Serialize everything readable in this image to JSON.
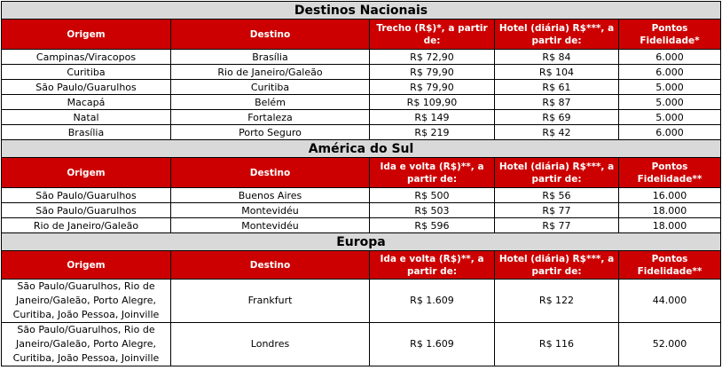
{
  "sections": [
    {
      "title": "Destinos Nacionais",
      "headers": [
        "Origem",
        "Destino",
        "Trecho (R$)*, a partir de:",
        "Hotel (diária) R$***, a partir de:",
        "Pontos Fidelidade*"
      ],
      "rows": [
        [
          "Campinas/Viracopos",
          "Brasília",
          "R$ 72,90",
          "R$ 84",
          "6.000"
        ],
        [
          "Curitiba",
          "Rio de Janeiro/Galeão",
          "R$ 79,90",
          "R$ 104",
          "6.000"
        ],
        [
          "São Paulo/Guarulhos",
          "Curitiba",
          "R$ 79,90",
          "R$ 61",
          "5.000"
        ],
        [
          "Macapá",
          "Belém",
          "R$ 109,90",
          "R$ 87",
          "5.000"
        ],
        [
          "Natal",
          "Fortaleza",
          "R$ 149",
          "R$ 69",
          "5.000"
        ],
        [
          "Brasília",
          "Porto Seguro",
          "R$ 219",
          "R$ 42",
          "6.000"
        ]
      ]
    },
    {
      "title": "América do Sul",
      "headers": [
        "Origem",
        "Destino",
        "Ida e volta (R$)**, a partir de:",
        "Hotel (diária) R$***, a partir de:",
        "Pontos Fidelidade**"
      ],
      "rows": [
        [
          "São Paulo/Guarulhos",
          "Buenos Aires",
          "R$ 500",
          "R$ 56",
          "16.000"
        ],
        [
          "São Paulo/Guarulhos",
          "Montevidéu",
          "R$ 503",
          "R$ 77",
          "18.000"
        ],
        [
          "Rio de Janeiro/Galeão",
          "Montevidéu",
          "R$ 596",
          "R$ 77",
          "18.000"
        ]
      ]
    },
    {
      "title": "Europa",
      "headers": [
        "Origem",
        "Destino",
        "Ida e volta (R$)**, a partir de:",
        "Hotel (diária) R$***, a partir de:",
        "Pontos Fidelidade**"
      ],
      "rows": [
        [
          "São Paulo/Guarulhos, Rio de Janeiro/Galeão, Porto Alegre, Curitiba, João Pessoa, Joinville",
          "Frankfurt",
          "R$ 1.609",
          "R$ 122",
          "44.000"
        ],
        [
          "São Paulo/Guarulhos, Rio de Janeiro/Galeão, Porto Alegre, Curitiba, João Pessoa, Joinville",
          "Londres",
          "R$ 1.609",
          "R$ 116",
          "52.000"
        ]
      ]
    }
  ],
  "colors": {
    "header_bg": "#cc0000",
    "header_text": "#ffffff",
    "section_bg": "#d9d9d9",
    "border": "#000000"
  }
}
